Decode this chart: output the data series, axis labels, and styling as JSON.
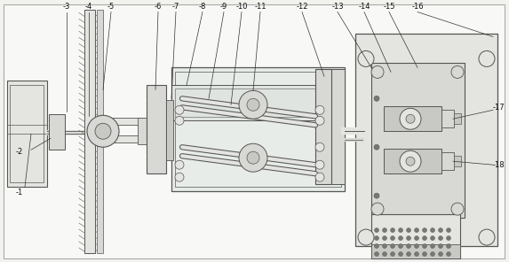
{
  "bg": "#f2f2ee",
  "lc": "#555555",
  "lc2": "#777777",
  "white": "#f8f8f6",
  "gray1": "#d8d8d4",
  "gray2": "#e4e4e0",
  "gray3": "#c8c8c4",
  "label_fs": 6.0,
  "figw": 5.73,
  "figh": 2.96,
  "dpi": 100,
  "xlim": [
    0,
    573
  ],
  "ylim": [
    0,
    296
  ]
}
